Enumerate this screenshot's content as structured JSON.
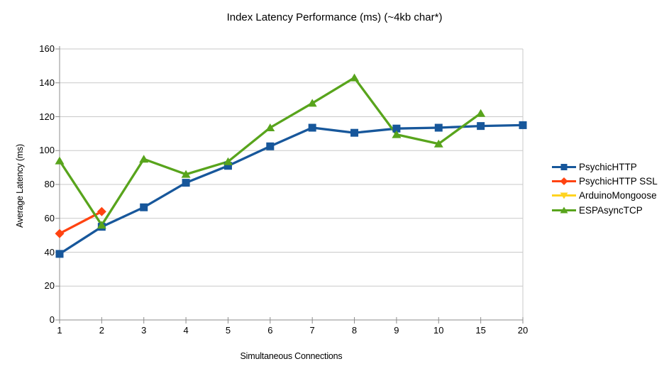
{
  "chart_data": {
    "type": "line",
    "title": "Index Latency Performance (ms) (~4kb char*)",
    "xlabel": "Simultaneous Connections",
    "ylabel": "Average Latency (ms)",
    "categories": [
      "1",
      "2",
      "3",
      "4",
      "5",
      "6",
      "7",
      "8",
      "9",
      "10",
      "15",
      "20"
    ],
    "ylim": [
      0,
      160
    ],
    "ytick_step": 20,
    "ytick_labels": [
      "0",
      "20",
      "40",
      "60",
      "80",
      "100",
      "120",
      "140",
      "160"
    ],
    "grid": "horizontal",
    "legend_position": "right",
    "series": [
      {
        "name": "PsychicHTTP",
        "color": "#17579B",
        "marker": "square",
        "values": [
          39,
          55,
          66.5,
          81,
          91,
          102.5,
          113.5,
          110.5,
          113,
          113.5,
          114.5,
          115
        ]
      },
      {
        "name": "PsychicHTTP SSL",
        "color": "#FF4311",
        "marker": "diamond",
        "values": [
          51,
          64,
          null,
          null,
          null,
          null,
          null,
          null,
          null,
          null,
          null,
          null
        ]
      },
      {
        "name": "ArduinoMongoose",
        "color": "#FFD320",
        "marker": "triangle-down",
        "values": [
          null,
          null,
          null,
          null,
          null,
          null,
          null,
          null,
          null,
          null,
          null,
          null
        ]
      },
      {
        "name": "ESPAsyncTCP",
        "color": "#58A41C",
        "marker": "triangle-up",
        "values": [
          94,
          56,
          95,
          86,
          93.5,
          113.5,
          128,
          143,
          109.5,
          104,
          122,
          null
        ]
      }
    ]
  },
  "style_colors": {
    "gridline": "#C9C9C9",
    "axis": "#8C8C8C",
    "background": "#FFFFFF",
    "text": "#000000"
  }
}
